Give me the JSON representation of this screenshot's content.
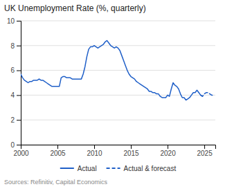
{
  "chart_data": {
    "type": "line",
    "title": "UK Unemployment Rate (%, quarterly)",
    "source": "Sources: Refinitiv, Capital Economics",
    "xlim": [
      2000.0,
      2026.5
    ],
    "xticks": [
      2000,
      2005,
      2010,
      2015,
      2020,
      2025
    ],
    "ylim": [
      0,
      10
    ],
    "yticks": [
      0,
      2,
      4,
      6,
      8,
      10
    ],
    "grid": true,
    "legend": "bottom",
    "series": [
      {
        "name": "Actual",
        "color": "#1f5fc8",
        "line_style": "solid",
        "x": [
          2000.0,
          2000.25,
          2000.5,
          2000.75,
          2001.0,
          2001.25,
          2001.5,
          2001.75,
          2002.0,
          2002.25,
          2002.5,
          2002.75,
          2003.0,
          2003.25,
          2003.5,
          2003.75,
          2004.0,
          2004.25,
          2004.5,
          2004.75,
          2005.0,
          2005.25,
          2005.5,
          2005.75,
          2006.0,
          2006.25,
          2006.5,
          2006.75,
          2007.0,
          2007.25,
          2007.5,
          2007.75,
          2008.0,
          2008.25,
          2008.5,
          2008.75,
          2009.0,
          2009.25,
          2009.5,
          2009.75,
          2010.0,
          2010.25,
          2010.5,
          2010.75,
          2011.0,
          2011.25,
          2011.5,
          2011.75,
          2012.0,
          2012.25,
          2012.5,
          2012.75,
          2013.0,
          2013.25,
          2013.5,
          2013.75,
          2014.0,
          2014.25,
          2014.5,
          2014.75,
          2015.0,
          2015.25,
          2015.5,
          2015.75,
          2016.0,
          2016.25,
          2016.5,
          2016.75,
          2017.0,
          2017.25,
          2017.5,
          2017.75,
          2018.0,
          2018.25,
          2018.5,
          2018.75,
          2019.0,
          2019.25,
          2019.5,
          2019.75,
          2020.0,
          2020.25,
          2020.5,
          2020.75,
          2021.0,
          2021.25,
          2021.5,
          2021.75,
          2022.0,
          2022.25,
          2022.5,
          2022.75,
          2023.0,
          2023.25,
          2023.5,
          2023.75,
          2024.0,
          2024.25,
          2024.5,
          2024.75
        ],
        "values": [
          5.7,
          5.4,
          5.2,
          5.1,
          5.0,
          5.1,
          5.1,
          5.2,
          5.2,
          5.2,
          5.3,
          5.2,
          5.2,
          5.1,
          5.0,
          4.9,
          4.8,
          4.7,
          4.7,
          4.7,
          4.7,
          4.7,
          5.4,
          5.5,
          5.5,
          5.4,
          5.4,
          5.4,
          5.3,
          5.3,
          5.3,
          5.3,
          5.3,
          5.3,
          5.7,
          6.3,
          7.1,
          7.7,
          7.9,
          7.9,
          8.0,
          7.9,
          7.8,
          7.9,
          8.0,
          8.1,
          8.3,
          8.4,
          8.2,
          8.0,
          7.9,
          7.8,
          7.9,
          7.8,
          7.6,
          7.2,
          6.8,
          6.4,
          6.0,
          5.7,
          5.5,
          5.4,
          5.3,
          5.1,
          5.0,
          4.9,
          4.8,
          4.7,
          4.6,
          4.5,
          4.3,
          4.3,
          4.2,
          4.2,
          4.1,
          4.1,
          3.9,
          3.8,
          3.8,
          3.8,
          4.0,
          3.9,
          4.5,
          5.0,
          4.8,
          4.7,
          4.5,
          4.1,
          3.8,
          3.8,
          3.6,
          3.7,
          3.8,
          4.0,
          4.2,
          4.2,
          4.4,
          4.2,
          4.0,
          3.9
        ]
      },
      {
        "name": "Actual & forecast",
        "color": "#1f5fc8",
        "line_style": "dashed",
        "x": [
          2024.5,
          2024.75,
          2025.0,
          2025.25,
          2025.5,
          2025.75,
          2026.0,
          2026.25
        ],
        "values": [
          4.0,
          3.9,
          4.1,
          4.2,
          4.2,
          4.1,
          4.0,
          4.0
        ]
      }
    ]
  }
}
